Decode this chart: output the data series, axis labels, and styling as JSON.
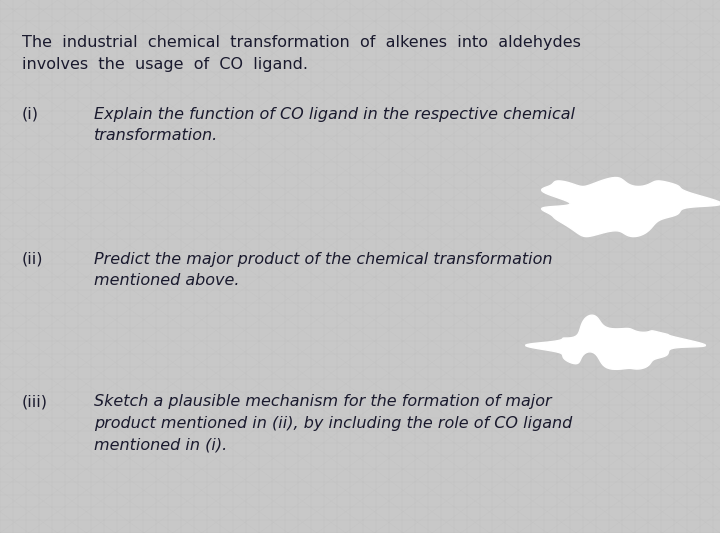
{
  "background_color": "#c8c8c8",
  "text_color": "#1a1a2e",
  "fig_width": 7.2,
  "fig_height": 5.33,
  "dpi": 100,
  "intro_line1": "The  industrial  chemical  transformation  of  alkenes  into  aldehydes",
  "intro_line2": "involves  the  usage  of  CO  ligand.",
  "item_i_label": "(i)",
  "item_i_line1": "Explain the function of CO ligand in the respective chemical",
  "item_i_line2": "transformation.",
  "item_ii_label": "(ii)",
  "item_ii_line1": "Predict the major product of the chemical transformation",
  "item_ii_line2": "mentioned above.",
  "item_iii_label": "(iii)",
  "item_iii_line1": "Sketch a plausible mechanism for the formation of major",
  "item_iii_line2": "product mentioned in (ii), by including the role of CO ligand",
  "item_iii_line3": "mentioned in (i).",
  "font_size_intro": 11.5,
  "font_size_items": 11.5,
  "grid_color": "#b8b8b8",
  "blob_color": "#ffffff"
}
